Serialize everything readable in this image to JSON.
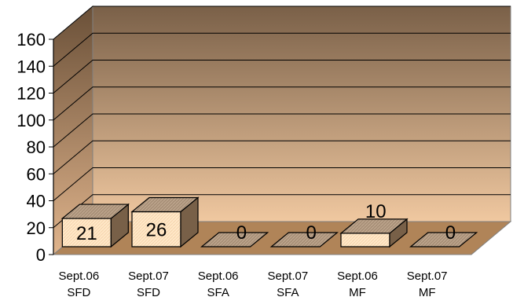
{
  "chart_data": {
    "type": "bar",
    "title": "",
    "xlabel": "",
    "ylabel": "",
    "ylim": [
      0,
      160
    ],
    "yticks": [
      0,
      20,
      40,
      60,
      80,
      100,
      120,
      140,
      160
    ],
    "grid": true,
    "legend": "none",
    "categories": [
      [
        "Sept.06",
        "SFD"
      ],
      [
        "Sept.07",
        "SFD"
      ],
      [
        "Sept.06",
        "SFA"
      ],
      [
        "Sept.07",
        "SFA"
      ],
      [
        "Sept.06",
        "MF"
      ],
      [
        "Sept.07",
        "MF"
      ]
    ],
    "values": [
      21,
      26,
      0,
      0,
      10,
      0
    ],
    "colors": {
      "bar_front": "#ffe8c8",
      "bar_top": "#a89078",
      "bar_side": "#786048",
      "wall_top": "#7a6048",
      "wall_bottom": "#f0c8a0",
      "floor": "#b08458"
    }
  }
}
